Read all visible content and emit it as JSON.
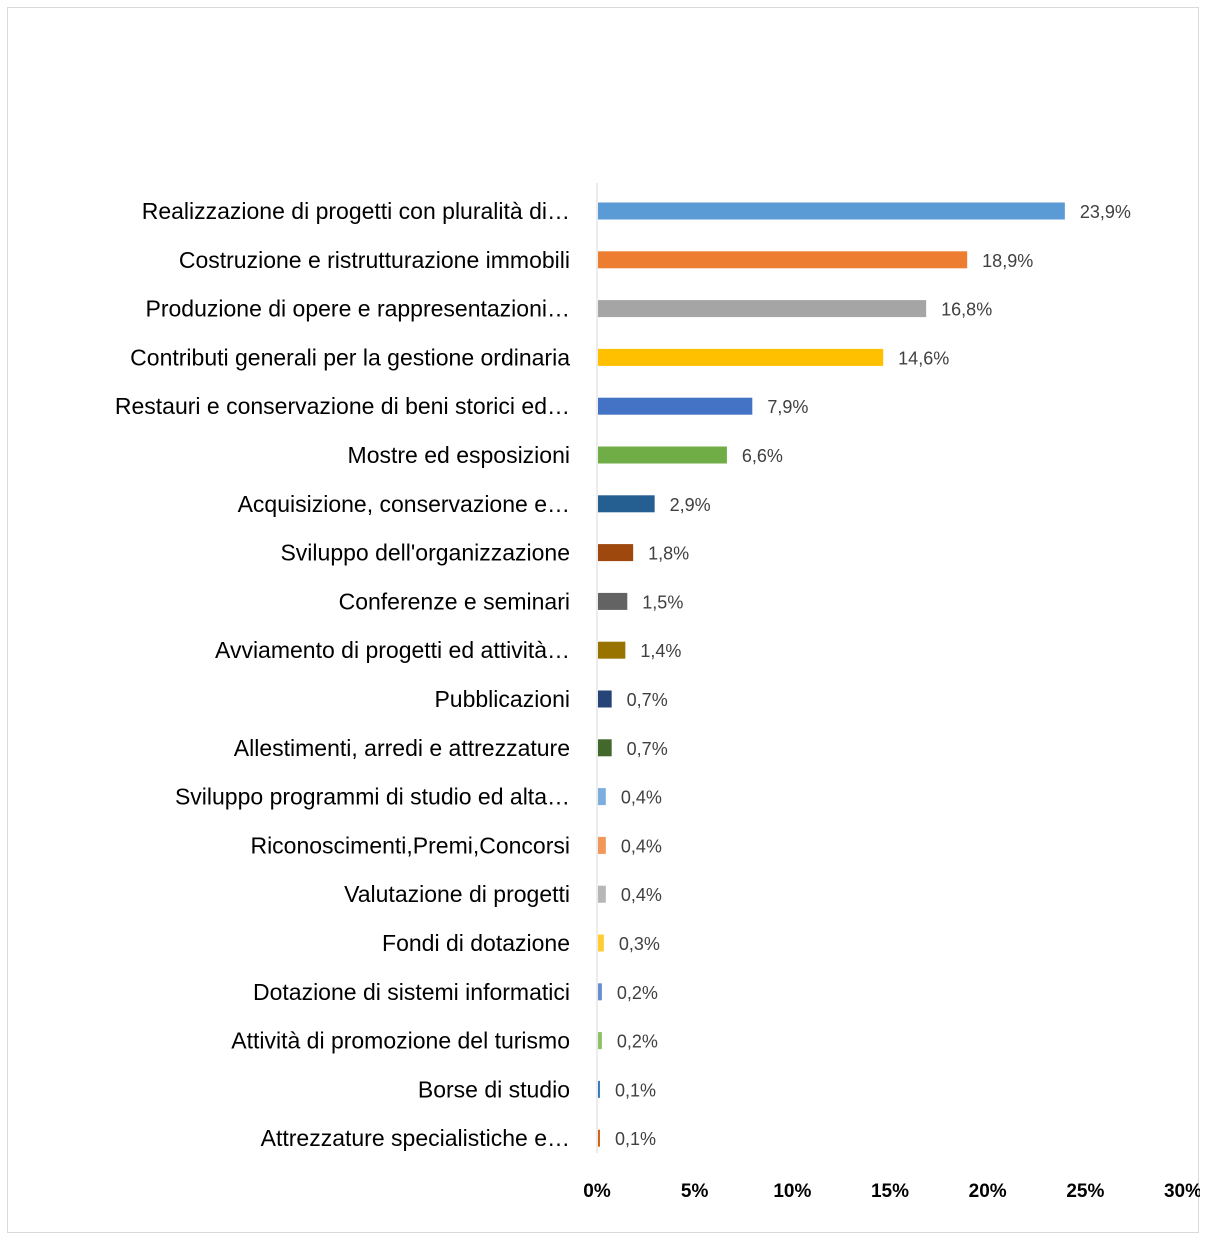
{
  "chart_data": {
    "type": "bar",
    "orientation": "horizontal",
    "title": "",
    "xlabel": "",
    "ylabel": "",
    "xlim": [
      0,
      30
    ],
    "grid": false,
    "legend": "none",
    "x_ticks": [
      "0%",
      "5%",
      "10%",
      "15%",
      "20%",
      "25%",
      "30%"
    ],
    "x_tick_values": [
      0,
      5,
      10,
      15,
      20,
      25,
      30
    ],
    "categories": [
      "Realizzazione di progetti con pluralità di…",
      "Costruzione e ristrutturazione immobili",
      "Produzione di opere e rappresentazioni…",
      "Contributi generali per la gestione ordinaria",
      "Restauri e conservazione di beni storici ed…",
      "Mostre ed esposizioni",
      "Acquisizione, conservazione e…",
      "Sviluppo dell'organizzazione",
      "Conferenze e seminari",
      "Avviamento di progetti ed attività…",
      "Pubblicazioni",
      "Allestimenti, arredi e attrezzature",
      "Sviluppo programmi di studio ed alta…",
      "Riconoscimenti,Premi,Concorsi",
      "Valutazione di progetti",
      "Fondi di dotazione",
      "Dotazione di sistemi informatici",
      "Attività di promozione del turismo",
      "Borse di studio",
      "Attrezzature specialistiche e…"
    ],
    "values": [
      23.9,
      18.9,
      16.8,
      14.6,
      7.9,
      6.6,
      2.9,
      1.8,
      1.5,
      1.4,
      0.7,
      0.7,
      0.4,
      0.4,
      0.4,
      0.3,
      0.2,
      0.2,
      0.1,
      0.1
    ],
    "value_labels": [
      "23,9%",
      "18,9%",
      "16,8%",
      "14,6%",
      "7,9%",
      "6,6%",
      "2,9%",
      "1,8%",
      "1,5%",
      "1,4%",
      "0,7%",
      "0,7%",
      "0,4%",
      "0,4%",
      "0,4%",
      "0,3%",
      "0,2%",
      "0,2%",
      "0,1%",
      "0,1%"
    ],
    "colors": [
      "#5b9bd5",
      "#ed7d31",
      "#a5a5a5",
      "#ffc000",
      "#4472c4",
      "#70ad47",
      "#255e91",
      "#9e480e",
      "#636363",
      "#997300",
      "#264478",
      "#43682b",
      "#7cafdd",
      "#f1975a",
      "#b7b7b7",
      "#ffcd33",
      "#698ed0",
      "#8cc168",
      "#327dc2",
      "#d26012"
    ]
  }
}
